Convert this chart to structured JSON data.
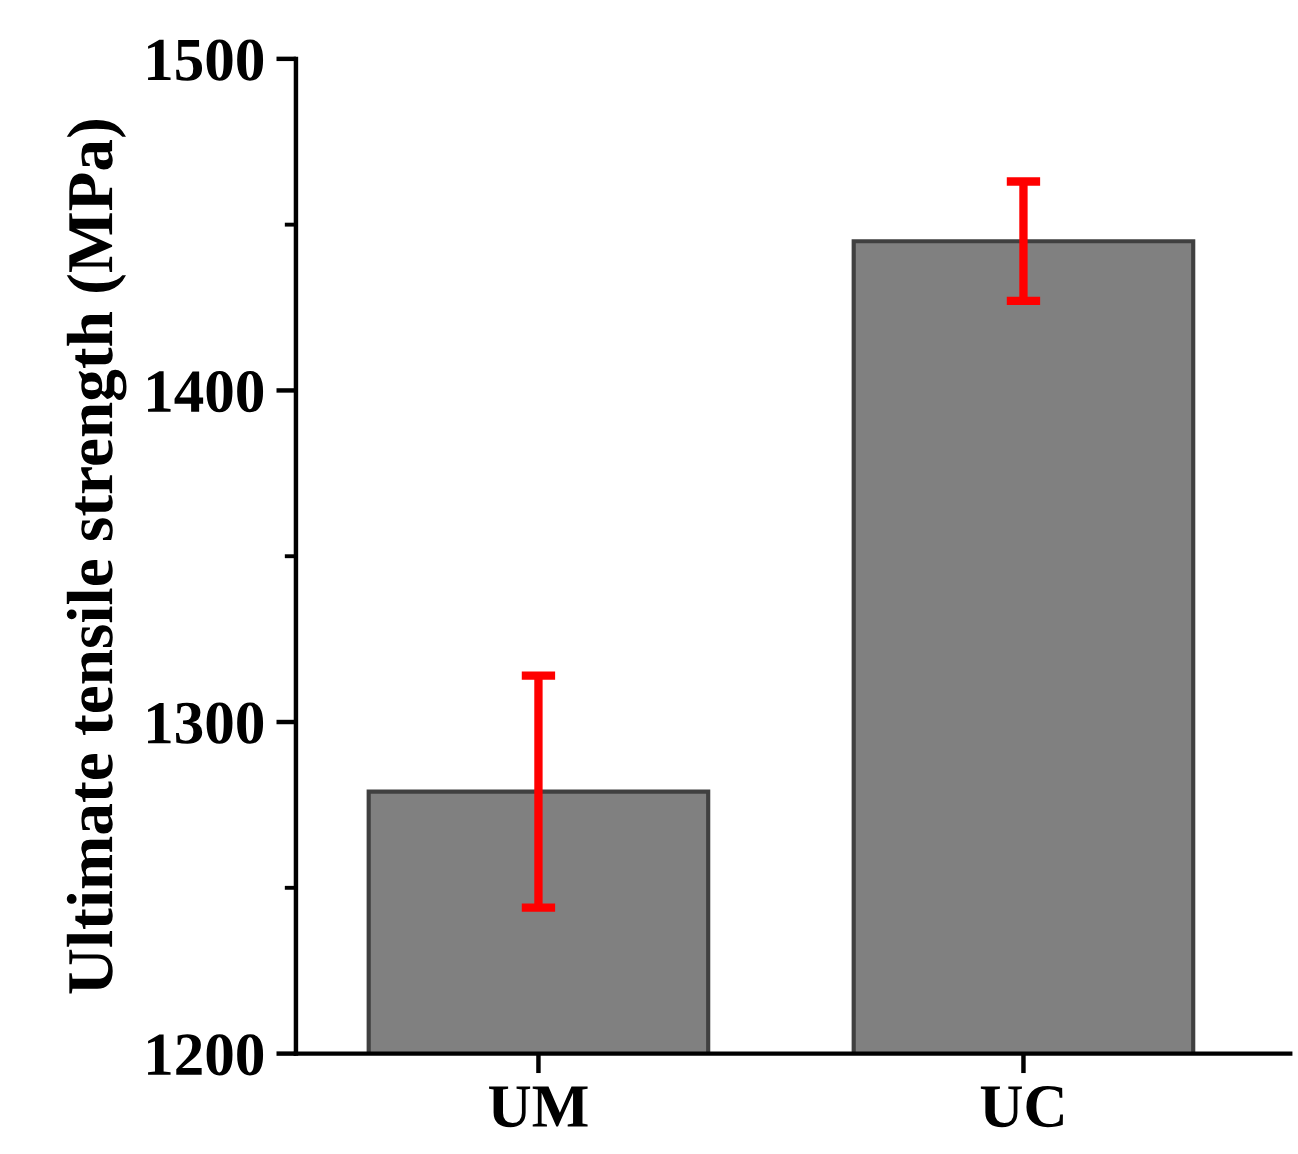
{
  "chart_data": {
    "type": "bar",
    "ylabel": "Ultimate tensile strength (MPa)",
    "categories": [
      "UM",
      "UC"
    ],
    "values": [
      1279,
      1445
    ],
    "errors": [
      35,
      18
    ],
    "color": "#808080",
    "ylim": [
      1200,
      1500
    ],
    "yticks": [
      1200,
      {
        "value": 1250,
        "label": null
      },
      1300,
      {
        "value": 1350,
        "label": null
      },
      1400,
      {
        "value": 1450,
        "label": null
      },
      1500
    ]
  }
}
